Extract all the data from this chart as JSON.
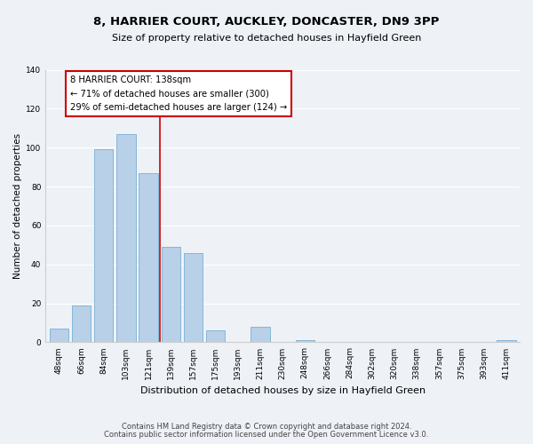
{
  "title": "8, HARRIER COURT, AUCKLEY, DONCASTER, DN9 3PP",
  "subtitle": "Size of property relative to detached houses in Hayfield Green",
  "xlabel": "Distribution of detached houses by size in Hayfield Green",
  "ylabel": "Number of detached properties",
  "bar_labels": [
    "48sqm",
    "66sqm",
    "84sqm",
    "103sqm",
    "121sqm",
    "139sqm",
    "157sqm",
    "175sqm",
    "193sqm",
    "211sqm",
    "230sqm",
    "248sqm",
    "266sqm",
    "284sqm",
    "302sqm",
    "320sqm",
    "338sqm",
    "357sqm",
    "375sqm",
    "393sqm",
    "411sqm"
  ],
  "bar_values": [
    7,
    19,
    99,
    107,
    87,
    49,
    46,
    6,
    0,
    8,
    0,
    1,
    0,
    0,
    0,
    0,
    0,
    0,
    0,
    0,
    1
  ],
  "bar_color": "#b8d0e8",
  "bar_edge_color": "#7aafd4",
  "annotation_title": "8 HARRIER COURT: 138sqm",
  "annotation_line1": "← 71% of detached houses are smaller (300)",
  "annotation_line2": "29% of semi-detached houses are larger (124) →",
  "annotation_box_facecolor": "#ffffff",
  "annotation_box_edgecolor": "#cc0000",
  "vline_color": "#cc0000",
  "ylim": [
    0,
    140
  ],
  "yticks": [
    0,
    20,
    40,
    60,
    80,
    100,
    120,
    140
  ],
  "footnote1": "Contains HM Land Registry data © Crown copyright and database right 2024.",
  "footnote2": "Contains public sector information licensed under the Open Government Licence v3.0.",
  "background_color": "#eef2f7",
  "title_fontsize": 9.5,
  "subtitle_fontsize": 8,
  "ylabel_fontsize": 7.5,
  "xlabel_fontsize": 8,
  "tick_fontsize": 6.5,
  "annotation_fontsize": 7.2,
  "footnote_fontsize": 6
}
